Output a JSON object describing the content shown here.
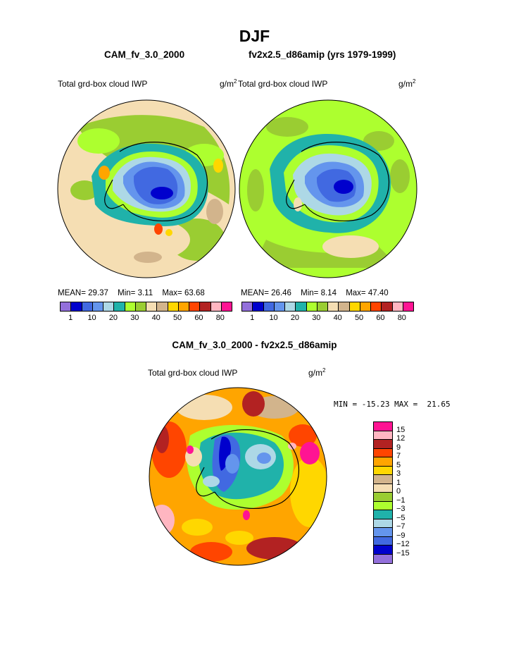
{
  "header": {
    "season": "DJF",
    "left_case": "CAM_fv_3.0_2000",
    "right_case": "fv2x2.5_d86amip (yrs 1979-1999)"
  },
  "left_panel": {
    "variable": "Total grd-box cloud IWP",
    "units_base": "g/m",
    "units_exp": "2",
    "mean_label": "MEAN=",
    "mean_value": "29.37",
    "min_label": "Min=",
    "min_value": "3.11",
    "max_label": "Max=",
    "max_value": "63.68"
  },
  "right_panel": {
    "variable": "Total grd-box cloud IWP",
    "units_base": "g/m",
    "units_exp": "2",
    "mean_label": "MEAN=",
    "mean_value": "26.46",
    "min_label": "Min=",
    "min_value": "8.14",
    "max_label": "Max=",
    "max_value": "47.40"
  },
  "abs_colorbar": {
    "colors": [
      "#9370db",
      "#0000cd",
      "#4169e1",
      "#6495ed",
      "#add8e6",
      "#20b2aa",
      "#adff2f",
      "#9acd32",
      "#f5deb3",
      "#d2b48c",
      "#ffd700",
      "#ffa500",
      "#ff4500",
      "#b22222",
      "#ffb6c1",
      "#ff1493"
    ],
    "ticks": [
      "1",
      "10",
      "20",
      "30",
      "40",
      "50",
      "60",
      "80"
    ]
  },
  "diff": {
    "title": "CAM_fv_3.0_2000 - fv2x2.5_d86amip",
    "variable": "Total grd-box cloud IWP",
    "units_base": "g/m",
    "units_exp": "2",
    "minmax": "MIN = -15.23 MAX =  21.65",
    "colors": [
      "#ff1493",
      "#ffb6c1",
      "#b22222",
      "#ff4500",
      "#ffa500",
      "#ffd700",
      "#d2b48c",
      "#f5deb3",
      "#9acd32",
      "#adff2f",
      "#20b2aa",
      "#add8e6",
      "#6495ed",
      "#4169e1",
      "#0000cd",
      "#9370db"
    ],
    "ticks": [
      "15",
      "12",
      "9",
      "7",
      "5",
      "3",
      "1",
      "0",
      "−1",
      "−3",
      "−5",
      "−7",
      "−9",
      "−12",
      "−15"
    ]
  }
}
